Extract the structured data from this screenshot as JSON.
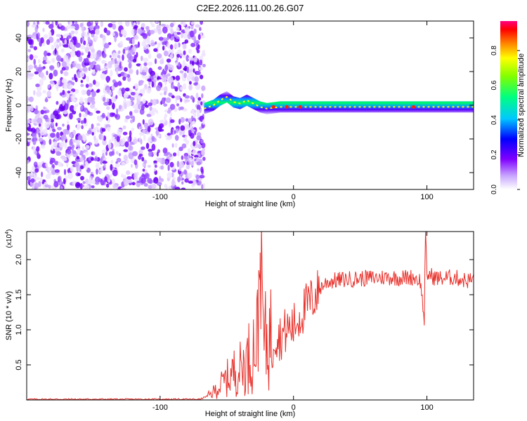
{
  "title": "C2E2.2026.111.00.26.G07",
  "chart_data": [
    {
      "type": "heatmap",
      "name": "spectrogram",
      "xlabel": "Height of straight line (km)",
      "ylabel": "Frequency (Hz)",
      "xlim": [
        -200,
        135
      ],
      "ylim": [
        -50,
        50
      ],
      "xticks": [
        -100,
        0,
        100
      ],
      "yticks": [
        -40,
        -20,
        0,
        20,
        40
      ],
      "xtick_labels": [
        "-100",
        "0",
        "100"
      ],
      "ytick_labels": [
        "-40",
        "-20",
        "0",
        "20",
        "40"
      ],
      "noise_region_x": [
        -200,
        -67
      ],
      "signal_track": {
        "x": [
          -67,
          -60,
          -55,
          -50,
          -45,
          -40,
          -35,
          -30,
          -25,
          -20,
          -10,
          0,
          10,
          30,
          60,
          90,
          100,
          120,
          135
        ],
        "freq": [
          -2,
          0,
          3,
          5,
          2,
          1,
          3,
          1,
          -1,
          -2,
          -1,
          -1,
          -1,
          -1,
          -1,
          -1,
          -1,
          -1,
          -1
        ]
      },
      "colorbar": {
        "label": "Normalized spectral amplitude",
        "range": [
          0,
          0.97
        ],
        "ticks": [
          0.0,
          0.2,
          0.4,
          0.6,
          0.8
        ],
        "tick_labels": [
          "0.0",
          "0.2",
          "0.4",
          "0.6",
          "0.8"
        ],
        "colors": [
          "#ffffff",
          "#e8d8ff",
          "#8000ff",
          "#0000ff",
          "#00c8ff",
          "#00ff80",
          "#80ff00",
          "#ffff00",
          "#ff8000",
          "#ff0000",
          "#ff0080"
        ]
      }
    },
    {
      "type": "line",
      "name": "snr",
      "xlabel": "Height of straight line (km)",
      "ylabel": "SNR (10 * v/v)",
      "y_multiplier_label": "(x10",
      "y_multiplier_exp": "4",
      "xlim": [
        -200,
        135
      ],
      "ylim": [
        0,
        2.4
      ],
      "xticks": [
        -100,
        0,
        100
      ],
      "yticks": [
        0.5,
        1.0,
        1.5,
        2.0
      ],
      "xtick_labels": [
        "-100",
        "0",
        "100"
      ],
      "ytick_labels": [
        "0.5",
        "1.0",
        "1.5",
        "2.0"
      ],
      "color": "#e8302a",
      "series": [
        {
          "name": "SNR",
          "x": [
            -200,
            -70,
            -62,
            -55,
            -50,
            -45,
            -40,
            -35,
            -30,
            -27,
            -25,
            -22,
            -20,
            -15,
            -10,
            -5,
            0,
            5,
            10,
            15,
            20,
            25,
            30,
            40,
            50,
            60,
            70,
            80,
            90,
            95,
            98,
            99,
            100,
            101,
            105,
            110,
            120,
            130,
            135
          ],
          "y": [
            0.01,
            0.01,
            0.08,
            0.2,
            0.3,
            0.4,
            0.45,
            0.55,
            0.75,
            0.9,
            2.1,
            0.8,
            0.85,
            0.95,
            0.9,
            1.0,
            1.05,
            1.2,
            1.35,
            1.45,
            1.6,
            1.68,
            1.7,
            1.72,
            1.73,
            1.74,
            1.75,
            1.74,
            1.75,
            1.7,
            1.15,
            2.4,
            1.72,
            1.8,
            1.75,
            1.73,
            1.75,
            1.7,
            1.72
          ]
        }
      ]
    }
  ]
}
